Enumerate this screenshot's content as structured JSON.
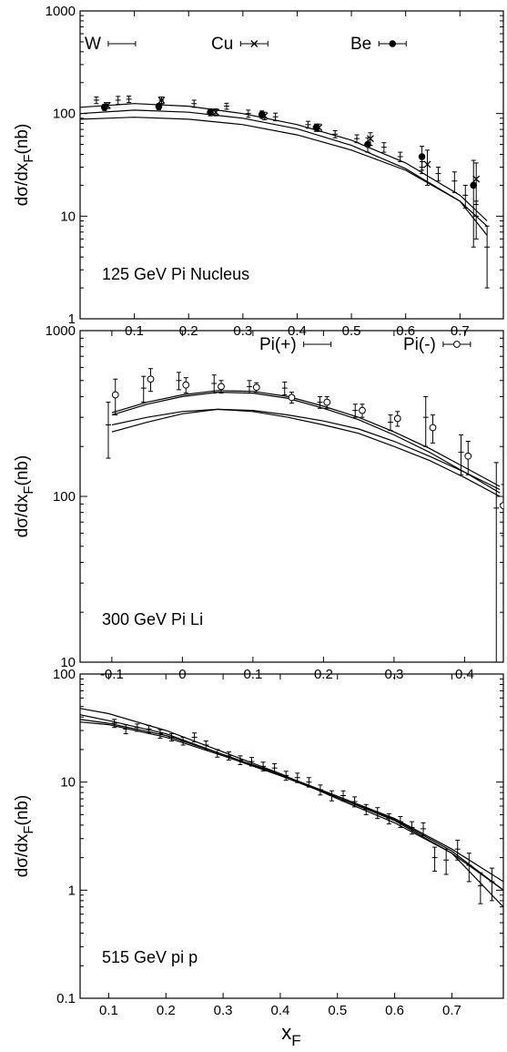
{
  "chart_data": [
    {
      "type": "line",
      "annotation": "125 GeV Pi Nucleus",
      "ylabel": "dσ/dx",
      "ylabel_sub": "F",
      "ylabel_unit": "(nb)",
      "xlim": [
        0.0,
        0.78
      ],
      "ylim": [
        1,
        1000
      ],
      "yscale": "log",
      "x_ticks": [
        0.1,
        0.2,
        0.3,
        0.4,
        0.5,
        0.6,
        0.7
      ],
      "x_tick_labels": [
        "0.1",
        "0.2",
        "0.3",
        "0.4",
        "0.5",
        "0.6",
        "0.7"
      ],
      "y_ticks": [
        1,
        10,
        100,
        1000
      ],
      "y_tick_labels": [
        "1",
        "10",
        "100",
        "1000"
      ],
      "legend": [
        {
          "name": "W",
          "marker": "plus"
        },
        {
          "name": "Cu",
          "marker": "cross"
        },
        {
          "name": "Be",
          "marker": "dot"
        }
      ],
      "series": [
        {
          "name": "W",
          "marker": "plus",
          "points": [
            [
              0.03,
              135,
              10
            ],
            [
              0.07,
              135,
              12
            ],
            [
              0.09,
              138,
              10
            ],
            [
              0.15,
              135,
              10
            ],
            [
              0.21,
              125,
              10
            ],
            [
              0.27,
              118,
              8
            ],
            [
              0.31,
              100,
              8
            ],
            [
              0.36,
              93,
              8
            ],
            [
              0.42,
              78,
              6
            ],
            [
              0.47,
              63,
              5
            ],
            [
              0.51,
              57,
              5
            ],
            [
              0.56,
              47,
              5
            ],
            [
              0.59,
              38,
              4
            ],
            [
              0.63,
              30,
              4
            ],
            [
              0.66,
              26,
              4
            ],
            [
              0.69,
              22,
              5
            ],
            [
              0.71,
              16,
              4
            ],
            [
              0.73,
              10,
              4
            ],
            [
              0.75,
              5,
              3
            ]
          ]
        },
        {
          "name": "Cu",
          "marker": "cross",
          "points": [
            [
              0.05,
              120,
              8
            ],
            [
              0.15,
              135,
              10
            ],
            [
              0.25,
              103,
              8
            ],
            [
              0.34,
              95,
              8
            ],
            [
              0.44,
              73,
              6
            ],
            [
              0.535,
              57,
              8
            ],
            [
              0.64,
              32,
              12
            ],
            [
              0.73,
              23,
              10
            ]
          ]
        },
        {
          "name": "Be",
          "marker": "dot",
          "points": [
            [
              0.045,
              115,
              8
            ],
            [
              0.145,
              117,
              8
            ],
            [
              0.24,
              103,
              8
            ],
            [
              0.335,
              98,
              8
            ],
            [
              0.435,
              73,
              6
            ],
            [
              0.53,
              50,
              8
            ],
            [
              0.63,
              38,
              10
            ],
            [
              0.725,
              20,
              15
            ]
          ]
        }
      ],
      "curves": [
        {
          "x": [
            0.0,
            0.1,
            0.2,
            0.3,
            0.4,
            0.5,
            0.6,
            0.7,
            0.75
          ],
          "y": [
            115,
            125,
            118,
            100,
            78,
            55,
            33,
            16,
            9
          ]
        },
        {
          "x": [
            0.0,
            0.1,
            0.2,
            0.3,
            0.4,
            0.5,
            0.6,
            0.7,
            0.75
          ],
          "y": [
            100,
            108,
            103,
            90,
            71,
            49,
            29,
            14,
            8
          ]
        },
        {
          "x": [
            0.0,
            0.1,
            0.2,
            0.3,
            0.4,
            0.5,
            0.6,
            0.7,
            0.75
          ],
          "y": [
            88,
            92,
            88,
            78,
            62,
            44,
            28,
            14,
            6.5
          ]
        }
      ]
    },
    {
      "type": "line",
      "annotation": "300 GeV Pi Li",
      "ylabel": "dσ/dx",
      "ylabel_sub": "F",
      "ylabel_unit": "(nb)",
      "xlim": [
        -0.145,
        0.455
      ],
      "ylim": [
        10,
        1000
      ],
      "yscale": "log",
      "x_ticks": [
        -0.1,
        0.0,
        0.1,
        0.2,
        0.3,
        0.4
      ],
      "x_tick_labels": [
        "-0.1",
        "0",
        "0.1",
        "0.2",
        "0.3",
        "0.4"
      ],
      "y_ticks": [
        10,
        100,
        1000
      ],
      "y_tick_labels": [
        "10",
        "100",
        "1000"
      ],
      "legend": [
        {
          "name": "Pi(+)",
          "marker": "plus"
        },
        {
          "name": "Pi(-)",
          "marker": "circle"
        }
      ],
      "series": [
        {
          "name": "Pi(+)",
          "marker": "plus",
          "points": [
            [
              -0.105,
              270,
              100
            ],
            [
              -0.055,
              450,
              80
            ],
            [
              -0.005,
              500,
              60
            ],
            [
              0.045,
              480,
              60
            ],
            [
              0.095,
              460,
              40
            ],
            [
              0.145,
              450,
              40
            ],
            [
              0.195,
              370,
              30
            ],
            [
              0.245,
              330,
              30
            ],
            [
              0.295,
              280,
              30
            ],
            [
              0.345,
              300,
              100
            ],
            [
              0.395,
              185,
              50
            ],
            [
              0.445,
              85,
              75
            ]
          ]
        },
        {
          "name": "Pi(-)",
          "marker": "circle",
          "points": [
            [
              -0.095,
              410,
              100
            ],
            [
              -0.045,
              510,
              80
            ],
            [
              0.005,
              470,
              50
            ],
            [
              0.055,
              460,
              40
            ],
            [
              0.105,
              455,
              30
            ],
            [
              0.155,
              395,
              30
            ],
            [
              0.205,
              370,
              30
            ],
            [
              0.255,
              330,
              30
            ],
            [
              0.305,
              295,
              30
            ],
            [
              0.355,
              260,
              50
            ],
            [
              0.405,
              175,
              40
            ],
            [
              0.455,
              88,
              30
            ]
          ]
        }
      ],
      "curves": [
        {
          "x": [
            -0.1,
            -0.05,
            0.0,
            0.05,
            0.1,
            0.15,
            0.2,
            0.25,
            0.3,
            0.35,
            0.4,
            0.45
          ],
          "y": [
            320,
            370,
            410,
            435,
            430,
            400,
            350,
            300,
            245,
            195,
            150,
            115
          ]
        },
        {
          "x": [
            -0.1,
            -0.05,
            0.0,
            0.05,
            0.1,
            0.15,
            0.2,
            0.25,
            0.3,
            0.35,
            0.4,
            0.45
          ],
          "y": [
            310,
            360,
            400,
            425,
            420,
            390,
            340,
            290,
            235,
            185,
            140,
            110
          ]
        },
        {
          "x": [
            -0.1,
            -0.05,
            0.0,
            0.05,
            0.1,
            0.15,
            0.2,
            0.25,
            0.3,
            0.35,
            0.4,
            0.45
          ],
          "y": [
            270,
            300,
            325,
            335,
            330,
            310,
            285,
            255,
            215,
            175,
            140,
            105
          ]
        },
        {
          "x": [
            -0.1,
            -0.05,
            0.0,
            0.05,
            0.1,
            0.15,
            0.2,
            0.25,
            0.3,
            0.35,
            0.4,
            0.45
          ],
          "y": [
            245,
            280,
            315,
            335,
            325,
            300,
            270,
            240,
            200,
            165,
            130,
            100
          ]
        }
      ]
    },
    {
      "type": "line",
      "annotation": "515 GeV pi p",
      "ylabel": "dσ/dx",
      "ylabel_sub": "F",
      "ylabel_unit": "(nb)",
      "xlabel": "x",
      "xlabel_sub": "F",
      "xlim": [
        0.05,
        0.79
      ],
      "ylim": [
        0.1,
        100
      ],
      "yscale": "log",
      "x_ticks": [
        0.1,
        0.2,
        0.3,
        0.4,
        0.5,
        0.6,
        0.7
      ],
      "x_tick_labels": [
        "0.1",
        "0.2",
        "0.3",
        "0.4",
        "0.5",
        "0.6",
        "0.7"
      ],
      "y_ticks": [
        0.1,
        1,
        10,
        100
      ],
      "y_tick_labels": [
        "0.1",
        "1",
        "10",
        "100"
      ],
      "series": [
        {
          "name": "",
          "marker": "plus",
          "points": [
            [
              0.11,
              35,
              3
            ],
            [
              0.13,
              31,
              3
            ],
            [
              0.15,
              32,
              2.5
            ],
            [
              0.17,
              31,
              2.5
            ],
            [
              0.19,
              28,
              2.5
            ],
            [
              0.21,
              26,
              2
            ],
            [
              0.23,
              24,
              2
            ],
            [
              0.25,
              26,
              2.5
            ],
            [
              0.27,
              22,
              2
            ],
            [
              0.29,
              18.5,
              1.5
            ],
            [
              0.31,
              17.5,
              1.5
            ],
            [
              0.33,
              16,
              1.5
            ],
            [
              0.35,
              15.5,
              1.4
            ],
            [
              0.37,
              14,
              1.3
            ],
            [
              0.39,
              13.5,
              1.3
            ],
            [
              0.41,
              11.5,
              1.1
            ],
            [
              0.43,
              11,
              1.1
            ],
            [
              0.45,
              10,
              1
            ],
            [
              0.47,
              8.5,
              0.9
            ],
            [
              0.49,
              7.5,
              0.8
            ],
            [
              0.51,
              7.5,
              0.8
            ],
            [
              0.53,
              6.6,
              0.7
            ],
            [
              0.55,
              5.6,
              0.6
            ],
            [
              0.57,
              5.2,
              0.6
            ],
            [
              0.59,
              4.6,
              0.5
            ],
            [
              0.61,
              4.3,
              0.5
            ],
            [
              0.63,
              3.8,
              0.5
            ],
            [
              0.65,
              3.7,
              0.5
            ],
            [
              0.67,
              2.0,
              0.5
            ],
            [
              0.69,
              1.9,
              0.5
            ],
            [
              0.71,
              2.4,
              0.5
            ],
            [
              0.73,
              1.7,
              0.5
            ],
            [
              0.75,
              1.1,
              0.35
            ],
            [
              0.77,
              1.2,
              0.4
            ]
          ]
        }
      ],
      "curves": [
        {
          "x": [
            0.05,
            0.1,
            0.2,
            0.3,
            0.4,
            0.5,
            0.6,
            0.7,
            0.79
          ],
          "y": [
            48,
            43,
            30,
            19,
            12,
            7,
            4.2,
            2.2,
            1.0
          ]
        },
        {
          "x": [
            0.05,
            0.1,
            0.2,
            0.3,
            0.4,
            0.5,
            0.6,
            0.7,
            0.79
          ],
          "y": [
            42,
            37,
            28,
            18,
            11.5,
            7.2,
            4.5,
            2.3,
            1.0
          ]
        },
        {
          "x": [
            0.05,
            0.1,
            0.2,
            0.3,
            0.4,
            0.5,
            0.6,
            0.7,
            0.79
          ],
          "y": [
            38,
            35,
            27,
            18,
            11.8,
            7.4,
            4.6,
            2.4,
            1.2
          ]
        },
        {
          "x": [
            0.05,
            0.1,
            0.2,
            0.3,
            0.4,
            0.5,
            0.6,
            0.7,
            0.79
          ],
          "y": [
            36,
            34,
            26,
            17.5,
            11.5,
            7.2,
            4.4,
            2.2,
            0.7
          ]
        }
      ]
    }
  ]
}
